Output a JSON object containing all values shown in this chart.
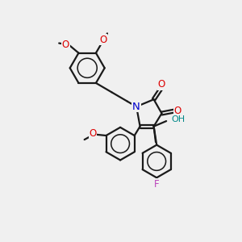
{
  "bg": "#f0f0f0",
  "bc": "#1a1a1a",
  "nc": "#0000cc",
  "oc": "#dd0000",
  "fc": "#bb44bb",
  "hc": "#008888",
  "lw": 1.6,
  "fs": 8.5,
  "figsize": [
    3.0,
    3.0
  ],
  "dpi": 100,
  "xlim": [
    0,
    10
  ],
  "ylim": [
    0,
    10
  ]
}
